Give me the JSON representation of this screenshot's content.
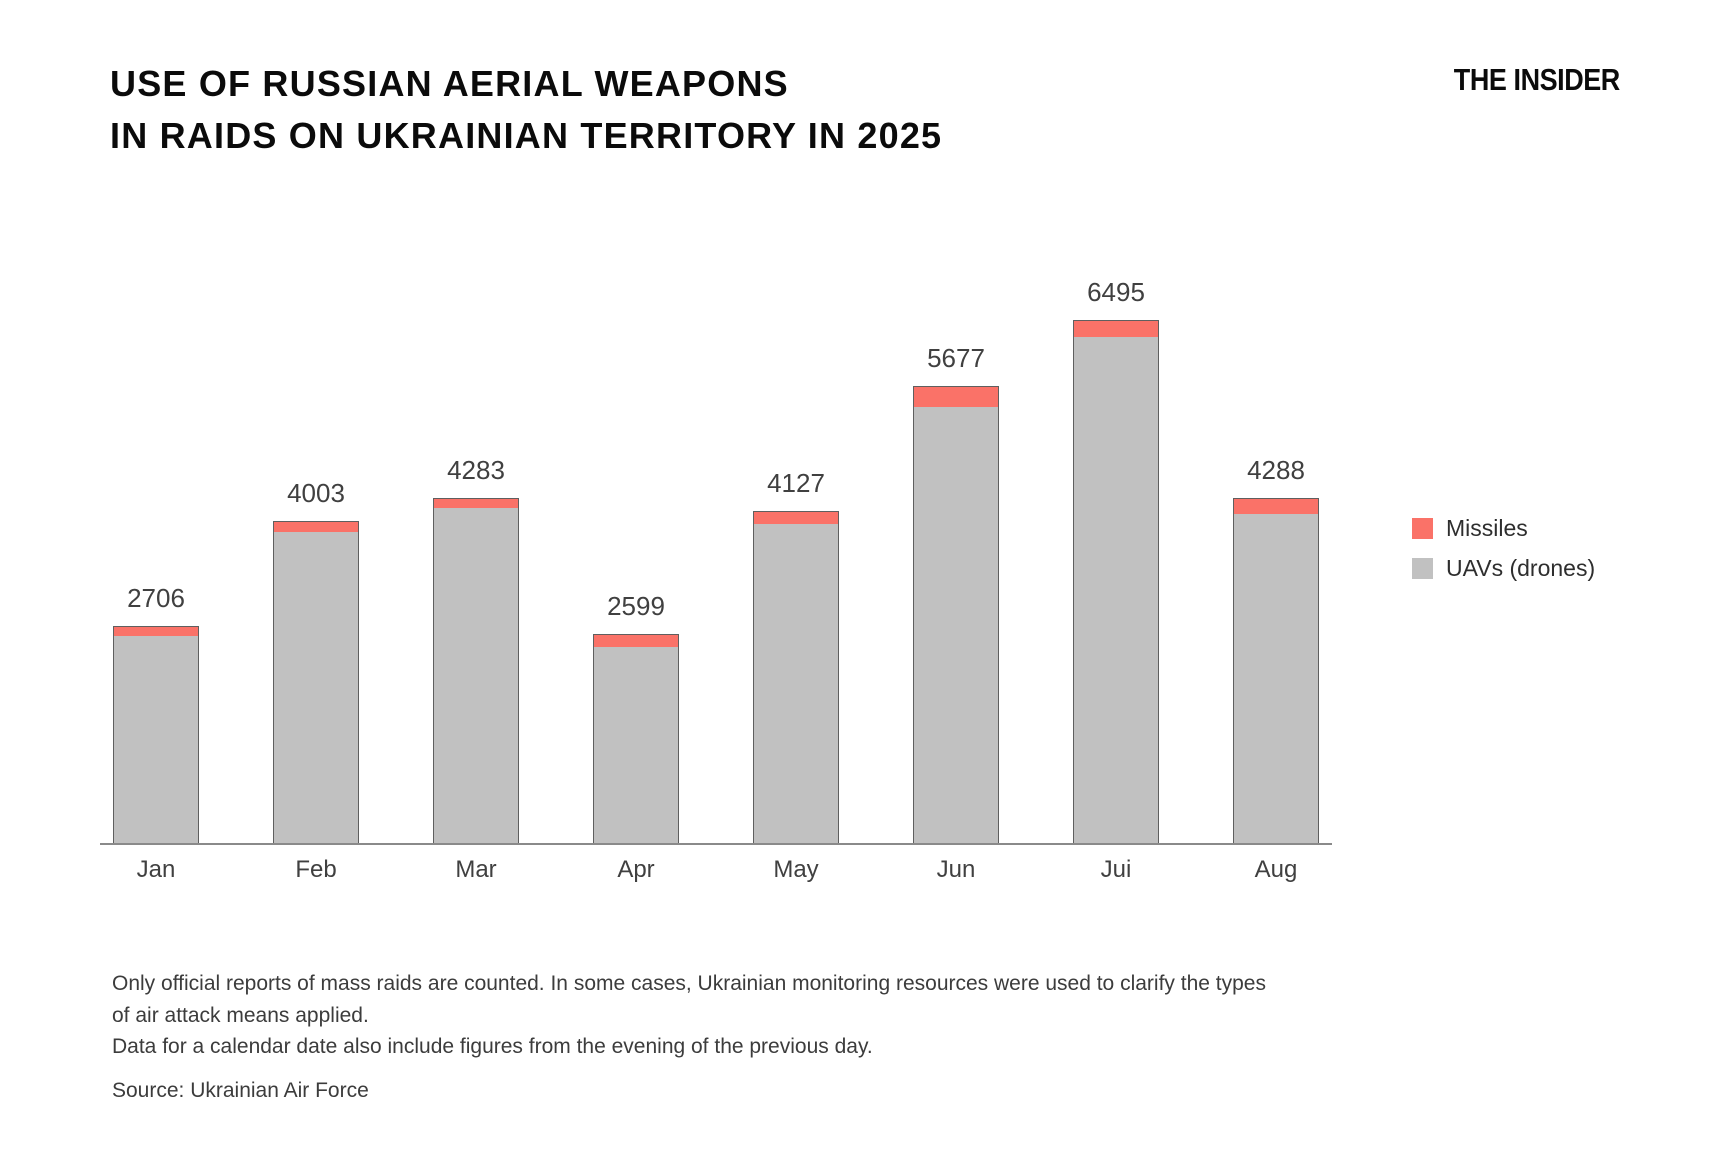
{
  "header": {
    "title_line1": "USE OF RUSSIAN AERIAL WEAPONS",
    "title_line2": "IN RAIDS ON UKRAINIAN TERRITORY IN 2025",
    "logo_text": "THE INSIDER"
  },
  "chart_data": {
    "type": "bar",
    "stacked": true,
    "title": "USE OF RUSSIAN AERIAL WEAPONS IN RAIDS ON UKRAINIAN TERRITORY IN 2025",
    "categories": [
      "Jan",
      "Feb",
      "Mar",
      "Apr",
      "May",
      "Jun",
      "Jui",
      "Aug"
    ],
    "totals": [
      2706,
      4003,
      4283,
      2599,
      4127,
      5677,
      6495,
      4288
    ],
    "value_labels": [
      "2706",
      "4003",
      "4283",
      "2599",
      "4127",
      "5677",
      "6495",
      "4288"
    ],
    "series": [
      {
        "name": "UAVs (drones)",
        "color": "#c1c1c1",
        "values": [
          2596,
          3878,
          4168,
          2449,
          3977,
          5427,
          6295,
          4103
        ]
      },
      {
        "name": "Missiles",
        "color": "#fa7268",
        "values": [
          110,
          125,
          115,
          150,
          150,
          250,
          200,
          185
        ],
        "values_estimated": true
      }
    ],
    "legend": [
      {
        "label": "Missiles",
        "color": "#fa7268"
      },
      {
        "label": "UAVs (drones)",
        "color": "#c1c1c1"
      }
    ],
    "legend_position": "right",
    "grid": false,
    "y_axis_shown": false,
    "ylim": [
      0,
      6800
    ],
    "axis_color": "#8a8a8a",
    "bar_border_color": "#5f5f5f",
    "label_color": "#404040"
  },
  "footnotes": {
    "lines": [
      "Only official reports of mass raids are counted. In some cases, Ukrainian monitoring resources were used to clarify the types",
      "of air attack means applied.",
      "Data for a calendar date also include figures from the evening of the previous day."
    ],
    "source": "Source: Ukrainian Air Force"
  }
}
